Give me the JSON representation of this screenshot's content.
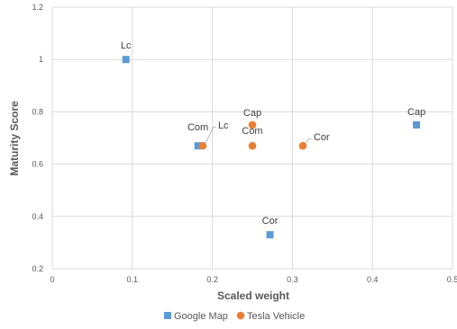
{
  "chart_data": {
    "type": "scatter",
    "title": "",
    "xlabel": "Scaled weight",
    "ylabel": "Maturity Score",
    "xlim": [
      0,
      0.5
    ],
    "ylim": [
      0.2,
      1.2
    ],
    "x_ticks": [
      "0",
      "0.1",
      "0.2",
      "0.3",
      "0.4",
      "0.5"
    ],
    "y_ticks": [
      "0.2",
      "0.4",
      "0.6",
      "0.8",
      "1",
      "1.2"
    ],
    "grid": true,
    "legend_position": "bottom",
    "series": [
      {
        "name": "Google Map",
        "marker": "square",
        "color": "#5b9bd5",
        "points": [
          {
            "x": 0.092,
            "y": 1.0,
            "label": "Lc"
          },
          {
            "x": 0.182,
            "y": 0.67,
            "label": "Com"
          },
          {
            "x": 0.272,
            "y": 0.33,
            "label": "Cor"
          },
          {
            "x": 0.455,
            "y": 0.75,
            "label": "Cap"
          }
        ]
      },
      {
        "name": "Tesla Vehicle",
        "marker": "circle",
        "color": "#ed7d31",
        "points": [
          {
            "x": 0.188,
            "y": 0.67,
            "label": "Lc"
          },
          {
            "x": 0.25,
            "y": 0.75,
            "label": "Cap"
          },
          {
            "x": 0.25,
            "y": 0.67,
            "label": "Com"
          },
          {
            "x": 0.313,
            "y": 0.67,
            "label": "Cor"
          }
        ]
      }
    ]
  }
}
